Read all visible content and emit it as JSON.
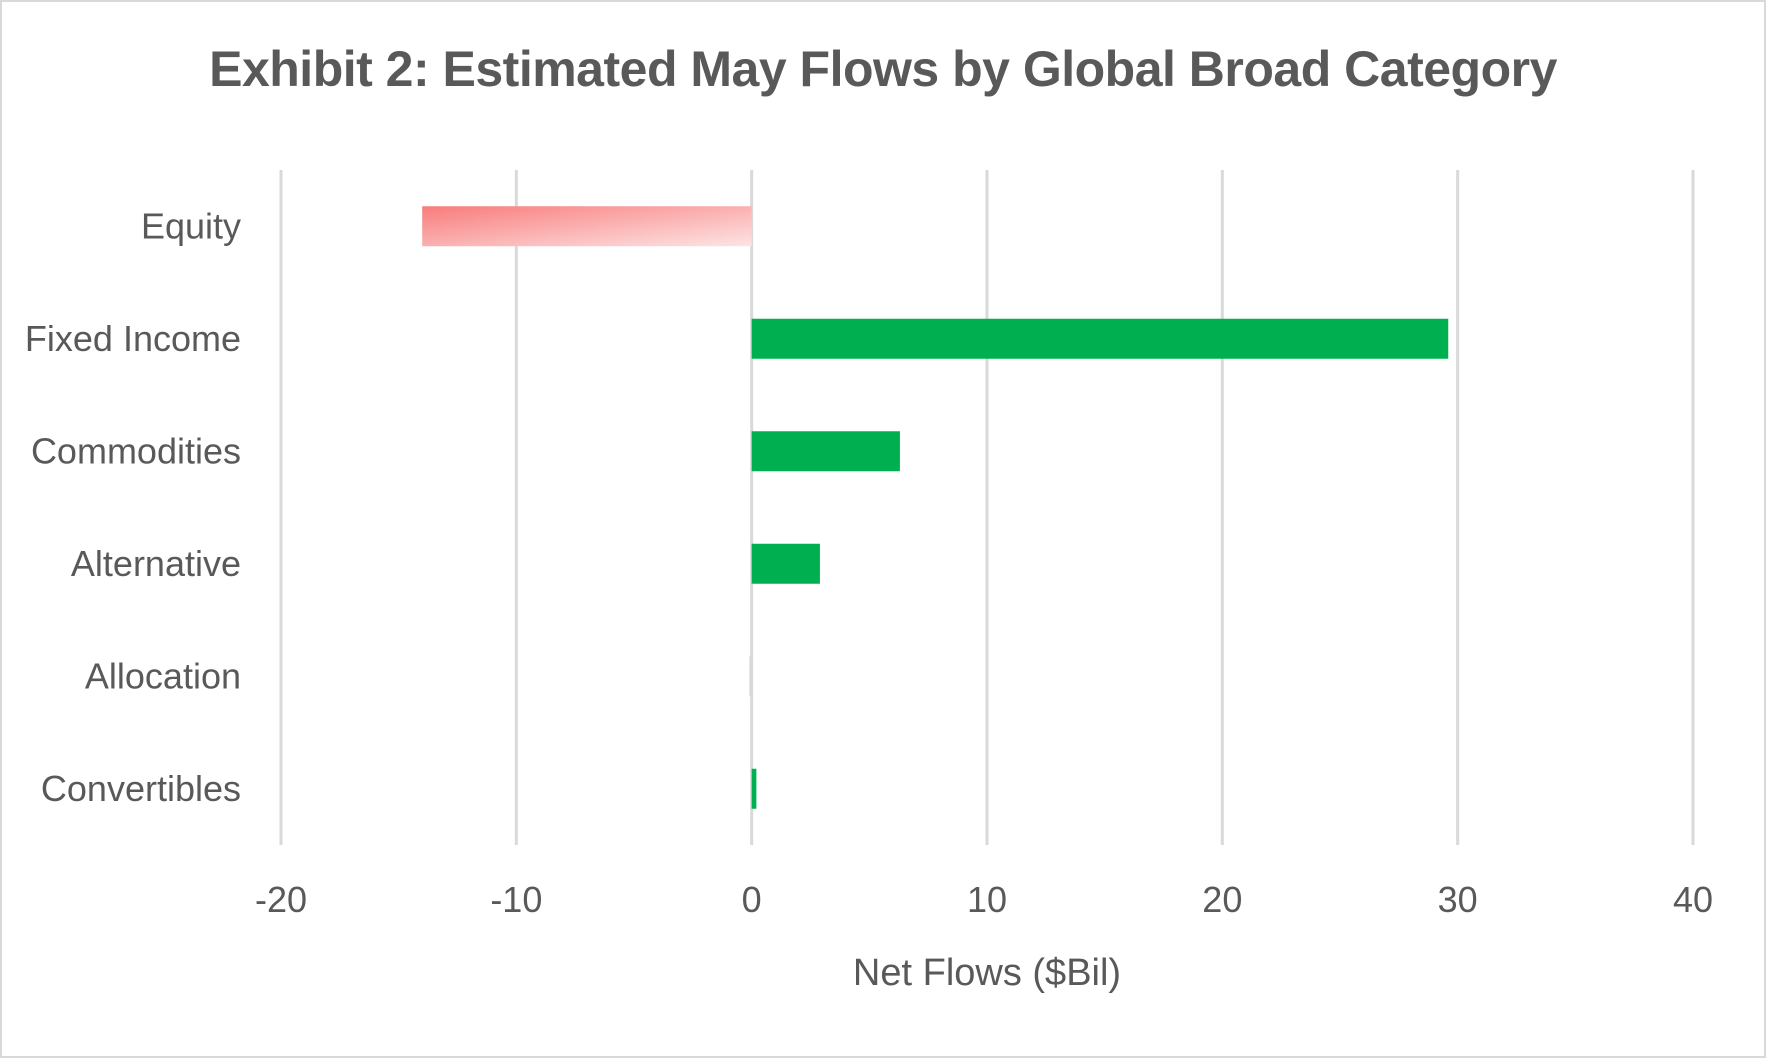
{
  "chart_data": {
    "type": "bar",
    "orientation": "horizontal",
    "title": "Exhibit 2: Estimated May Flows by Global Broad Category",
    "xlabel": "Net Flows ($Bil)",
    "ylabel": "",
    "xlim": [
      -20,
      40
    ],
    "xticks": [
      -20,
      -10,
      0,
      10,
      20,
      30,
      40
    ],
    "xtick_labels": [
      "-20",
      "-10",
      "0",
      "10",
      "20",
      "30",
      "40"
    ],
    "grid": true,
    "categories": [
      "Equity",
      "Fixed Income",
      "Commodities",
      "Alternative",
      "Allocation",
      "Convertibles"
    ],
    "values": [
      -14.0,
      29.6,
      6.3,
      2.9,
      -0.1,
      0.2
    ],
    "colors": {
      "positive": "#00b050",
      "negative_start": "#f87c7c",
      "negative_end": "#fde4e4",
      "grid": "#d9d9d9",
      "text": "#595959",
      "title": "#595959"
    }
  }
}
